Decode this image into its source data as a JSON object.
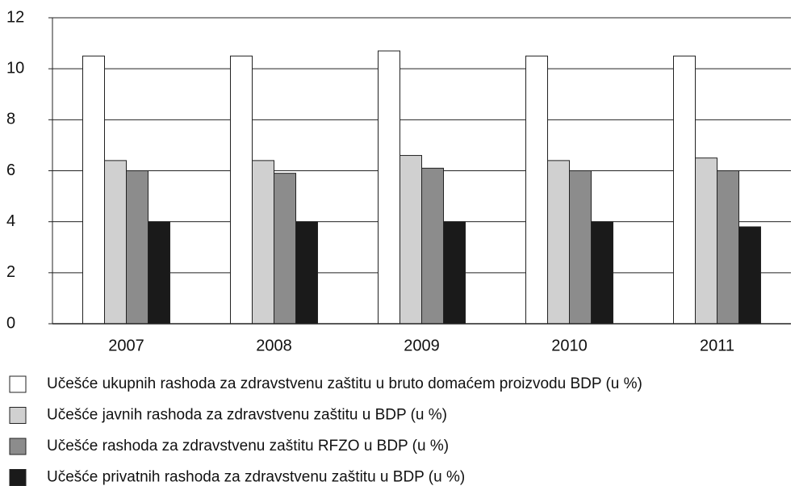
{
  "chart_data": {
    "type": "bar",
    "categories": [
      "2007",
      "2008",
      "2009",
      "2010",
      "2011"
    ],
    "series": [
      {
        "name": "Učešće ukupnih rashoda za zdravstvenu zaštitu u bruto domaćem proizvodu BDP (u %)",
        "color": "#ffffff",
        "values": [
          10.5,
          10.5,
          10.7,
          10.5,
          10.5
        ]
      },
      {
        "name": "Učešće javnih rashoda za zdravstvenu zaštitu u BDP (u %)",
        "color": "#d0d0d0",
        "values": [
          6.4,
          6.4,
          6.6,
          6.4,
          6.5
        ]
      },
      {
        "name": "Učešće rashoda za zdravstvenu zaštitu RFZO u BDP (u %)",
        "color": "#8c8c8c",
        "values": [
          6.0,
          5.9,
          6.1,
          6.0,
          6.0
        ]
      },
      {
        "name": "Učešće privatnih rashoda za zdravstvenu zaštitu u BDP (u %)",
        "color": "#1a1a1a",
        "values": [
          4.0,
          4.0,
          4.0,
          4.0,
          3.8
        ]
      }
    ],
    "ylim": [
      0,
      12
    ],
    "yticks": [
      0,
      2,
      4,
      6,
      8,
      10,
      12
    ],
    "grid": true,
    "legend": "bottom"
  }
}
